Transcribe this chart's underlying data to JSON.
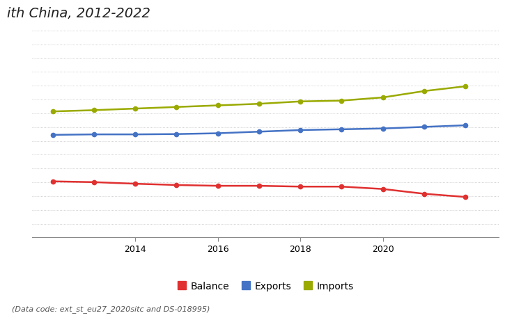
{
  "title_visible": "ith China, 2012-2022",
  "years": [
    2012,
    2013,
    2014,
    2015,
    2016,
    2017,
    2018,
    2019,
    2020,
    2021,
    2022
  ],
  "imports": [
    292,
    300,
    310,
    320,
    330,
    340,
    355,
    360,
    380,
    420,
    450
  ],
  "exports": [
    145,
    148,
    148,
    150,
    155,
    165,
    175,
    180,
    185,
    195,
    205
  ],
  "balance": [
    -147,
    -152,
    -162,
    -170,
    -175,
    -175,
    -180,
    -180,
    -195,
    -225,
    -245
  ],
  "imports_color": "#9aaa00",
  "exports_color": "#4472c4",
  "balance_color": "#e03030",
  "grid_color": "#aaaaaa",
  "background_color": "#ffffff",
  "footnote": "(Data code: ext_st_eu27_2020sitc and DS-018995)",
  "ylim_min": -500,
  "ylim_max": 800,
  "xticks": [
    2014,
    2016,
    2018,
    2020
  ],
  "legend_labels": [
    "Balance",
    "Exports",
    "Imports"
  ],
  "legend_colors": [
    "#e03030",
    "#4472c4",
    "#9aaa00"
  ],
  "title_fontsize": 14,
  "footnote_fontsize": 8
}
